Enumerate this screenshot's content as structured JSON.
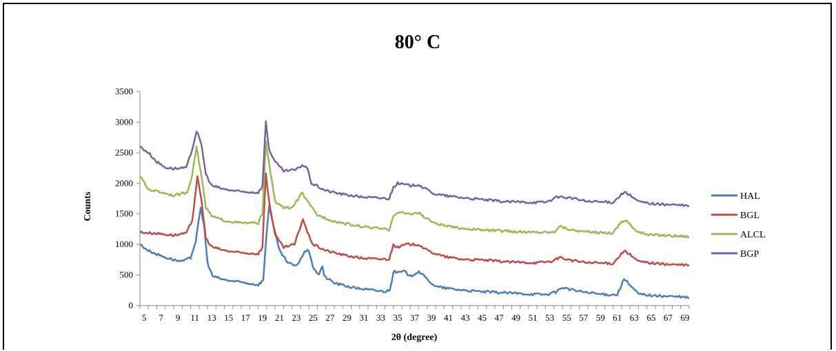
{
  "chart_data": {
    "type": "line",
    "title": "80° C",
    "xlabel": "2θ (degree)",
    "ylabel": "Counts",
    "xlim": [
      5,
      70
    ],
    "ylim": [
      0,
      3500
    ],
    "y_ticks": [
      "0",
      "500",
      "1000",
      "1500",
      "2000",
      "2500",
      "3000",
      "3500"
    ],
    "x_ticks": [
      "5",
      "7",
      "9",
      "11",
      "13",
      "15",
      "17",
      "19",
      "21",
      "23",
      "25",
      "27",
      "29",
      "31",
      "33",
      "35",
      "37",
      "39",
      "41",
      "43",
      "45",
      "47",
      "49",
      "51",
      "53",
      "55",
      "57",
      "59",
      "61",
      "63",
      "65",
      "67",
      "69"
    ],
    "grid": false,
    "legend_position": "right",
    "series": [
      {
        "name": "HAL",
        "color": "#4a7ebb",
        "points": [
          [
            5,
            1000
          ],
          [
            6,
            900
          ],
          [
            7,
            840
          ],
          [
            8,
            790
          ],
          [
            9,
            750
          ],
          [
            10,
            720
          ],
          [
            11,
            780
          ],
          [
            11.6,
            1050
          ],
          [
            12.2,
            1600
          ],
          [
            12.6,
            1300
          ],
          [
            13,
            700
          ],
          [
            13.6,
            480
          ],
          [
            15,
            420
          ],
          [
            17,
            380
          ],
          [
            19,
            340
          ],
          [
            19.6,
            420
          ],
          [
            20,
            1200
          ],
          [
            20.3,
            1650
          ],
          [
            20.8,
            1300
          ],
          [
            21.5,
            900
          ],
          [
            22.5,
            700
          ],
          [
            23.5,
            640
          ],
          [
            24.5,
            880
          ],
          [
            25,
            900
          ],
          [
            25.6,
            580
          ],
          [
            26.2,
            520
          ],
          [
            26.6,
            650
          ],
          [
            26.8,
            480
          ],
          [
            28,
            370
          ],
          [
            30,
            300
          ],
          [
            32,
            260
          ],
          [
            34,
            230
          ],
          [
            34.6,
            260
          ],
          [
            35,
            560
          ],
          [
            35.6,
            540
          ],
          [
            36.3,
            560
          ],
          [
            37,
            480
          ],
          [
            38,
            560
          ],
          [
            38.6,
            480
          ],
          [
            40,
            310
          ],
          [
            42,
            270
          ],
          [
            45,
            230
          ],
          [
            48,
            210
          ],
          [
            51,
            190
          ],
          [
            53,
            180
          ],
          [
            54.2,
            220
          ],
          [
            55,
            300
          ],
          [
            56,
            260
          ],
          [
            58,
            210
          ],
          [
            60,
            180
          ],
          [
            61.5,
            180
          ],
          [
            62.3,
            440
          ],
          [
            63,
            330
          ],
          [
            64,
            190
          ],
          [
            66,
            160
          ],
          [
            68,
            150
          ],
          [
            70,
            130
          ]
        ]
      },
      {
        "name": "BGL",
        "color": "#be4b48",
        "points": [
          [
            5,
            1200
          ],
          [
            7,
            1180
          ],
          [
            9,
            1150
          ],
          [
            10.5,
            1180
          ],
          [
            11.2,
            1400
          ],
          [
            11.8,
            2100
          ],
          [
            12.3,
            1700
          ],
          [
            12.8,
            1100
          ],
          [
            13.5,
            960
          ],
          [
            15,
            900
          ],
          [
            17,
            860
          ],
          [
            19,
            850
          ],
          [
            19.5,
            950
          ],
          [
            19.9,
            2150
          ],
          [
            20.3,
            1700
          ],
          [
            21,
            1150
          ],
          [
            22,
            950
          ],
          [
            23.3,
            1000
          ],
          [
            24.3,
            1420
          ],
          [
            24.8,
            1200
          ],
          [
            25.5,
            1000
          ],
          [
            27,
            900
          ],
          [
            29,
            830
          ],
          [
            31,
            780
          ],
          [
            33,
            760
          ],
          [
            34.5,
            760
          ],
          [
            35,
            1000
          ],
          [
            35.5,
            950
          ],
          [
            36.5,
            1000
          ],
          [
            38,
            1000
          ],
          [
            39,
            900
          ],
          [
            41,
            800
          ],
          [
            43,
            760
          ],
          [
            46,
            740
          ],
          [
            49,
            710
          ],
          [
            52,
            700
          ],
          [
            54,
            730
          ],
          [
            54.6,
            790
          ],
          [
            56,
            740
          ],
          [
            58,
            700
          ],
          [
            61,
            690
          ],
          [
            62.3,
            900
          ],
          [
            63,
            830
          ],
          [
            64,
            720
          ],
          [
            66,
            690
          ],
          [
            68,
            670
          ],
          [
            70,
            660
          ]
        ]
      },
      {
        "name": "ALCL",
        "color": "#98b954",
        "points": [
          [
            5,
            2120
          ],
          [
            6,
            1900
          ],
          [
            8,
            1840
          ],
          [
            9,
            1800
          ],
          [
            10.6,
            1850
          ],
          [
            11.2,
            2150
          ],
          [
            11.7,
            2600
          ],
          [
            12.3,
            2100
          ],
          [
            12.8,
            1600
          ],
          [
            13.5,
            1460
          ],
          [
            15,
            1390
          ],
          [
            17,
            1350
          ],
          [
            19,
            1350
          ],
          [
            19.5,
            1500
          ],
          [
            19.9,
            2700
          ],
          [
            20.3,
            2300
          ],
          [
            21,
            1700
          ],
          [
            22,
            1600
          ],
          [
            23,
            1600
          ],
          [
            24.2,
            1840
          ],
          [
            24.8,
            1700
          ],
          [
            26,
            1480
          ],
          [
            28,
            1380
          ],
          [
            30,
            1320
          ],
          [
            32,
            1280
          ],
          [
            34.5,
            1240
          ],
          [
            35,
            1480
          ],
          [
            35.6,
            1520
          ],
          [
            37,
            1500
          ],
          [
            38,
            1520
          ],
          [
            38.6,
            1450
          ],
          [
            40,
            1340
          ],
          [
            42,
            1280
          ],
          [
            45,
            1240
          ],
          [
            48,
            1220
          ],
          [
            51,
            1200
          ],
          [
            54,
            1200
          ],
          [
            54.6,
            1300
          ],
          [
            56,
            1240
          ],
          [
            58,
            1200
          ],
          [
            61,
            1190
          ],
          [
            62,
            1380
          ],
          [
            62.6,
            1390
          ],
          [
            63.5,
            1240
          ],
          [
            65,
            1160
          ],
          [
            67,
            1150
          ],
          [
            70,
            1130
          ]
        ]
      },
      {
        "name": "BGP",
        "color": "#7d5fa0",
        "points": [
          [
            5,
            2600
          ],
          [
            6,
            2500
          ],
          [
            7,
            2350
          ],
          [
            8,
            2260
          ],
          [
            9,
            2240
          ],
          [
            10.5,
            2250
          ],
          [
            11.2,
            2560
          ],
          [
            11.7,
            2860
          ],
          [
            12.3,
            2620
          ],
          [
            12.8,
            2150
          ],
          [
            13.5,
            1960
          ],
          [
            15,
            1900
          ],
          [
            17,
            1860
          ],
          [
            19,
            1850
          ],
          [
            19.5,
            1950
          ],
          [
            19.9,
            3000
          ],
          [
            20.3,
            2550
          ],
          [
            21,
            2350
          ],
          [
            22,
            2200
          ],
          [
            23.5,
            2220
          ],
          [
            24.2,
            2300
          ],
          [
            24.8,
            2250
          ],
          [
            25.3,
            2000
          ],
          [
            27,
            1880
          ],
          [
            29,
            1820
          ],
          [
            31,
            1780
          ],
          [
            33,
            1760
          ],
          [
            34.5,
            1750
          ],
          [
            35,
            1940
          ],
          [
            35.5,
            2000
          ],
          [
            37,
            1960
          ],
          [
            38,
            1980
          ],
          [
            38.6,
            1920
          ],
          [
            40,
            1820
          ],
          [
            42,
            1780
          ],
          [
            45,
            1740
          ],
          [
            48,
            1700
          ],
          [
            51,
            1690
          ],
          [
            53,
            1690
          ],
          [
            54.5,
            1780
          ],
          [
            56,
            1760
          ],
          [
            58,
            1700
          ],
          [
            61,
            1690
          ],
          [
            62.3,
            1860
          ],
          [
            63,
            1800
          ],
          [
            64,
            1700
          ],
          [
            66,
            1660
          ],
          [
            68,
            1650
          ],
          [
            70,
            1630
          ]
        ]
      }
    ]
  }
}
